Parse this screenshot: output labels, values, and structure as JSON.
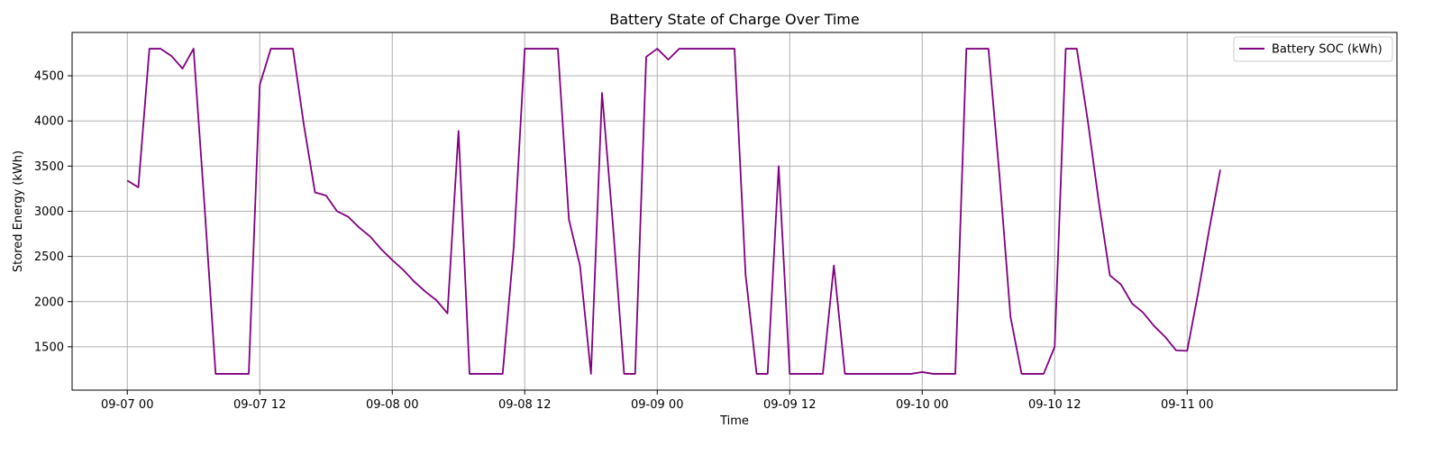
{
  "chart_data": {
    "type": "line",
    "title": "Battery State of Charge Over Time",
    "xlabel": "Time",
    "ylabel": "Stored Energy (kWh)",
    "x_ticks": [
      "09-07 00",
      "09-07 12",
      "09-08 00",
      "09-08 12",
      "09-09 00",
      "09-09 12",
      "09-10 00",
      "09-10 12",
      "09-11 00"
    ],
    "y_ticks": [
      1500,
      2000,
      2500,
      3000,
      3500,
      4000,
      4500
    ],
    "xlim": [
      "2023-09-06 19:00",
      "2023-09-11 19:00"
    ],
    "ylim": [
      1020,
      4980
    ],
    "grid": true,
    "legend_position": "top-right",
    "x_unit": "hour",
    "series": [
      {
        "name": "Battery SOC (kWh)",
        "color": "#800080",
        "x_start": "2023-09-07 00:00",
        "values": [
          3340,
          3265,
          4800,
          4800,
          4720,
          4580,
          4800,
          3050,
          1200,
          1200,
          1200,
          1200,
          4400,
          4800,
          4800,
          4800,
          3950,
          3210,
          3175,
          3000,
          2940,
          2820,
          2720,
          2580,
          2460,
          2350,
          2220,
          2110,
          2015,
          1870,
          3890,
          1200,
          1200,
          1200,
          1200,
          2600,
          4800,
          4800,
          4800,
          4800,
          2910,
          2400,
          1200,
          4310,
          2830,
          1200,
          1200,
          4710,
          4800,
          4680,
          4800,
          4800,
          4800,
          4800,
          4800,
          4800,
          2300,
          1200,
          1200,
          3500,
          1200,
          1200,
          1200,
          1200,
          2400,
          1200,
          1200,
          1200,
          1200,
          1200,
          1200,
          1200,
          1220,
          1200,
          1200,
          1200,
          4800,
          4800,
          4800,
          3400,
          1830,
          1200,
          1200,
          1200,
          1500,
          4800,
          4800,
          4000,
          3100,
          2290,
          2190,
          1980,
          1880,
          1730,
          1610,
          1460,
          1455,
          2100,
          2800,
          3460
        ]
      }
    ]
  }
}
